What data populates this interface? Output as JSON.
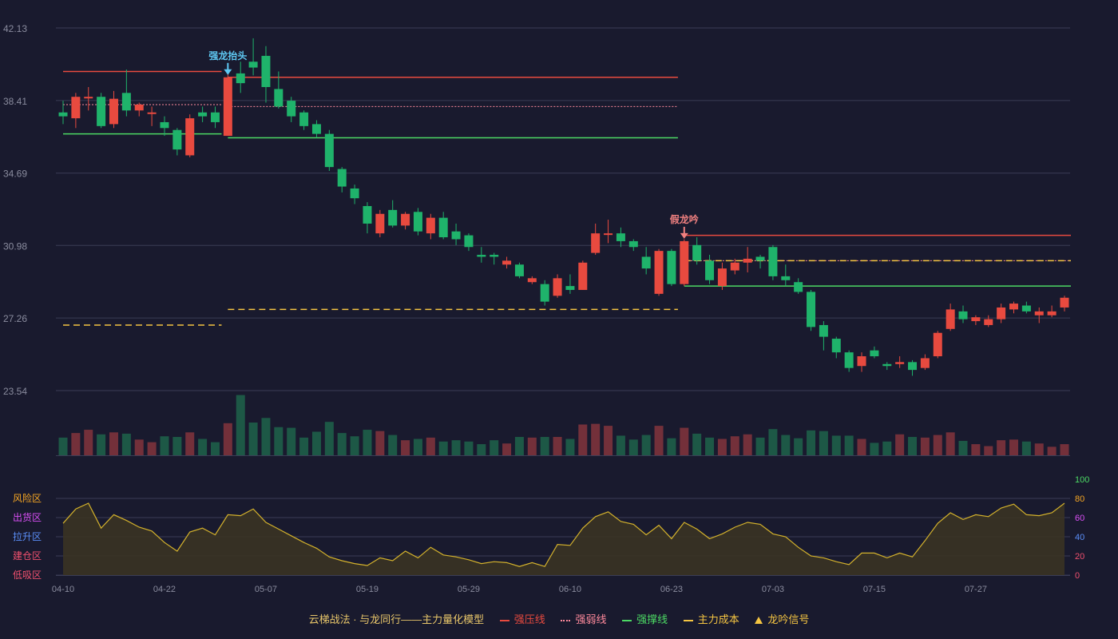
{
  "colors": {
    "background": "#191a2e",
    "up": "#e84a3f",
    "down": "#1fb36b",
    "vol_up": "#73303a",
    "vol_down": "#1d5846",
    "grid": "#3a3c55",
    "axis_text": "#8a8c9e",
    "pressure": "#e84a3f",
    "weak": "#ff8a9c",
    "support": "#4cd964",
    "cost": "#f5c542",
    "signal_blue": "#5ec8f2",
    "signal_red": "#f08080",
    "osc_line": "#d4b22c",
    "osc_fill": "#3a3323"
  },
  "legend": {
    "title": "云梯战法 · 与龙同行——主力量化模型",
    "items": [
      {
        "label": "强压线",
        "color": "#e84a3f",
        "style": "solid"
      },
      {
        "label": "强弱线",
        "color": "#ff8a9c",
        "style": "dotted"
      },
      {
        "label": "强撑线",
        "color": "#4cd964",
        "style": "solid"
      },
      {
        "label": "主力成本",
        "color": "#f5c542",
        "style": "dashed"
      },
      {
        "label": "龙吟信号",
        "color": "#f5c542",
        "style": "triangle"
      }
    ]
  },
  "chart_data": {
    "type": "candlestick",
    "price_axis": {
      "ticks": [
        "42.13",
        "38.41",
        "34.69",
        "30.98",
        "27.26",
        "23.54"
      ],
      "ylim": [
        23.54,
        42.13
      ]
    },
    "x_ticks": [
      {
        "index": 0,
        "label": "04-10"
      },
      {
        "index": 8,
        "label": "04-22"
      },
      {
        "index": 16,
        "label": "05-07"
      },
      {
        "index": 24,
        "label": "05-19"
      },
      {
        "index": 32,
        "label": "05-29"
      },
      {
        "index": 40,
        "label": "06-10"
      },
      {
        "index": 48,
        "label": "06-23"
      },
      {
        "index": 56,
        "label": "07-03"
      },
      {
        "index": 64,
        "label": "07-15"
      },
      {
        "index": 72,
        "label": "07-27"
      }
    ],
    "candles": [
      [
        37.8,
        37.6,
        38.4,
        37.2
      ],
      [
        37.5,
        38.6,
        38.8,
        37.0
      ],
      [
        38.6,
        38.6,
        39.1,
        37.9
      ],
      [
        38.6,
        37.1,
        38.8,
        37.0
      ],
      [
        37.2,
        38.5,
        38.9,
        37.0
      ],
      [
        38.8,
        37.9,
        40.0,
        37.6
      ],
      [
        37.9,
        38.2,
        38.3,
        37.6
      ],
      [
        37.8,
        37.8,
        38.1,
        37.1
      ],
      [
        37.3,
        37.0,
        37.6,
        36.6
      ],
      [
        36.9,
        35.9,
        37.0,
        35.6
      ],
      [
        35.6,
        37.5,
        37.7,
        35.5
      ],
      [
        37.8,
        37.6,
        38.1,
        37.3
      ],
      [
        37.8,
        37.3,
        38.1,
        37.0
      ],
      [
        36.6,
        39.6,
        39.8,
        36.6
      ],
      [
        39.8,
        39.3,
        40.4,
        38.8
      ],
      [
        40.4,
        40.1,
        41.6,
        39.7
      ],
      [
        40.7,
        39.1,
        41.2,
        38.3
      ],
      [
        39.0,
        38.1,
        39.9,
        38.0
      ],
      [
        38.4,
        37.6,
        38.6,
        37.3
      ],
      [
        37.8,
        37.1,
        37.9,
        36.9
      ],
      [
        37.2,
        36.7,
        37.4,
        36.5
      ],
      [
        36.7,
        35.0,
        36.9,
        34.8
      ],
      [
        34.9,
        34.0,
        35.0,
        33.7
      ],
      [
        33.9,
        33.4,
        34.1,
        33.1
      ],
      [
        33.0,
        32.1,
        33.2,
        31.6
      ],
      [
        31.6,
        32.6,
        32.8,
        31.4
      ],
      [
        32.8,
        32.0,
        33.3,
        31.9
      ],
      [
        32.0,
        32.6,
        32.7,
        31.8
      ],
      [
        32.7,
        31.7,
        32.9,
        31.5
      ],
      [
        31.6,
        32.4,
        32.6,
        31.3
      ],
      [
        32.4,
        31.4,
        32.7,
        31.3
      ],
      [
        31.7,
        31.3,
        32.1,
        31.0
      ],
      [
        31.5,
        30.9,
        31.6,
        30.7
      ],
      [
        30.5,
        30.4,
        30.9,
        30.1
      ],
      [
        30.5,
        30.4,
        30.6,
        30.0
      ],
      [
        30.0,
        30.2,
        30.4,
        29.8
      ],
      [
        30.0,
        29.4,
        30.1,
        29.3
      ],
      [
        29.1,
        29.3,
        29.4,
        29.0
      ],
      [
        29.0,
        28.1,
        29.2,
        27.9
      ],
      [
        28.4,
        29.3,
        29.5,
        28.3
      ],
      [
        28.9,
        28.7,
        29.5,
        28.5
      ],
      [
        28.7,
        30.1,
        30.2,
        28.7
      ],
      [
        30.6,
        31.6,
        32.1,
        30.5
      ],
      [
        31.6,
        31.6,
        32.3,
        31.1
      ],
      [
        31.6,
        31.2,
        31.9,
        30.9
      ],
      [
        31.2,
        30.9,
        31.3,
        30.7
      ],
      [
        30.4,
        29.8,
        30.9,
        29.5
      ],
      [
        28.5,
        30.7,
        30.8,
        28.4
      ],
      [
        30.7,
        29.0,
        30.8,
        28.9
      ],
      [
        29.0,
        31.2,
        31.3,
        28.9
      ],
      [
        31.0,
        30.2,
        31.4,
        30.0
      ],
      [
        30.2,
        29.2,
        30.5,
        29.0
      ],
      [
        28.9,
        29.8,
        30.1,
        28.7
      ],
      [
        29.7,
        30.1,
        30.3,
        29.5
      ],
      [
        30.1,
        30.3,
        30.9,
        29.6
      ],
      [
        30.4,
        30.2,
        30.5,
        29.8
      ],
      [
        30.9,
        29.4,
        31.0,
        29.2
      ],
      [
        29.4,
        29.2,
        30.0,
        28.9
      ],
      [
        29.1,
        28.6,
        29.3,
        28.5
      ],
      [
        28.6,
        26.8,
        28.7,
        26.6
      ],
      [
        26.9,
        26.3,
        27.1,
        25.6
      ],
      [
        26.2,
        25.5,
        26.3,
        25.2
      ],
      [
        25.5,
        24.7,
        25.6,
        24.5
      ],
      [
        24.8,
        25.3,
        25.5,
        24.5
      ],
      [
        25.6,
        25.3,
        25.8,
        25.2
      ],
      [
        24.9,
        24.8,
        25.0,
        24.6
      ],
      [
        24.9,
        25.0,
        25.3,
        24.7
      ],
      [
        25.0,
        24.6,
        25.1,
        24.3
      ],
      [
        24.7,
        25.2,
        25.4,
        24.6
      ],
      [
        25.3,
        26.5,
        26.6,
        25.2
      ],
      [
        26.7,
        27.7,
        28.0,
        26.6
      ],
      [
        27.6,
        27.2,
        27.9,
        27.0
      ],
      [
        27.1,
        27.3,
        27.4,
        26.9
      ],
      [
        26.9,
        27.2,
        27.4,
        26.8
      ],
      [
        27.2,
        27.8,
        28.0,
        27.0
      ],
      [
        27.7,
        28.0,
        28.1,
        27.5
      ],
      [
        27.9,
        27.6,
        28.1,
        27.5
      ],
      [
        27.4,
        27.6,
        27.8,
        27.0
      ],
      [
        27.4,
        27.6,
        27.9,
        27.3
      ],
      [
        27.8,
        28.3,
        28.4,
        27.6
      ]
    ],
    "volume": [
      0.27,
      0.34,
      0.39,
      0.32,
      0.35,
      0.33,
      0.24,
      0.2,
      0.29,
      0.28,
      0.35,
      0.25,
      0.2,
      0.49,
      0.92,
      0.5,
      0.57,
      0.43,
      0.42,
      0.27,
      0.36,
      0.51,
      0.34,
      0.29,
      0.39,
      0.37,
      0.31,
      0.23,
      0.25,
      0.27,
      0.21,
      0.23,
      0.21,
      0.17,
      0.23,
      0.18,
      0.28,
      0.27,
      0.28,
      0.28,
      0.25,
      0.47,
      0.48,
      0.45,
      0.3,
      0.24,
      0.31,
      0.45,
      0.26,
      0.42,
      0.33,
      0.27,
      0.25,
      0.29,
      0.32,
      0.27,
      0.4,
      0.31,
      0.26,
      0.38,
      0.37,
      0.3,
      0.3,
      0.25,
      0.19,
      0.21,
      0.32,
      0.28,
      0.27,
      0.31,
      0.35,
      0.22,
      0.17,
      0.14,
      0.23,
      0.24,
      0.21,
      0.18,
      0.13,
      0.17
    ],
    "oscillator": {
      "zones": [
        {
          "label": "风险区",
          "color": "#f5a623"
        },
        {
          "label": "出货区",
          "color": "#d94ff5"
        },
        {
          "label": "拉升区",
          "color": "#5b8ff9"
        },
        {
          "label": "建仓区",
          "color": "#f0506e"
        },
        {
          "label": "低吸区",
          "color": "#f0506e"
        }
      ],
      "right_ticks": [
        {
          "value": 100,
          "color": "#4cd964"
        },
        {
          "value": 80,
          "color": "#f5a623"
        },
        {
          "value": 60,
          "color": "#d94ff5"
        },
        {
          "value": 40,
          "color": "#5b8ff9"
        },
        {
          "value": 20,
          "color": "#f0506e"
        },
        {
          "value": 0,
          "color": "#f0506e"
        }
      ],
      "ylim": [
        0,
        100
      ],
      "values": [
        54,
        69,
        75,
        49,
        63,
        57,
        50,
        46,
        34,
        25,
        45,
        49,
        42,
        63,
        62,
        69,
        55,
        48,
        41,
        34,
        28,
        19,
        15,
        12,
        10,
        18,
        15,
        25,
        18,
        29,
        21,
        19,
        16,
        12,
        14,
        13,
        9,
        13,
        9,
        32,
        31,
        49,
        61,
        66,
        56,
        53,
        42,
        52,
        38,
        55,
        48,
        38,
        43,
        50,
        55,
        53,
        43,
        40,
        29,
        20,
        18,
        14,
        11,
        23,
        23,
        18,
        23,
        19,
        36,
        54,
        65,
        58,
        63,
        61,
        70,
        74,
        63,
        62,
        65,
        75
      ]
    },
    "segments": [
      {
        "type": "pressure",
        "from": 0,
        "to": 12,
        "value": 39.9
      },
      {
        "type": "weak",
        "from": 0,
        "to": 12,
        "value": 38.2
      },
      {
        "type": "support",
        "from": 0,
        "to": 12,
        "value": 36.7
      },
      {
        "type": "cost",
        "from": 0,
        "to": 12,
        "value": 26.9
      },
      {
        "type": "pressure",
        "from": 13,
        "to": 48,
        "value": 39.6
      },
      {
        "type": "weak",
        "from": 13,
        "to": 48,
        "value": 38.1
      },
      {
        "type": "support",
        "from": 13,
        "to": 48,
        "value": 36.5
      },
      {
        "type": "cost",
        "from": 13,
        "to": 48,
        "value": 27.7
      },
      {
        "type": "pressure",
        "from": 49,
        "to": 79,
        "value": 31.5
      },
      {
        "type": "weak",
        "from": 49,
        "to": 79,
        "value": 30.2
      },
      {
        "type": "support",
        "from": 49,
        "to": 79,
        "value": 28.9
      },
      {
        "type": "cost",
        "from": 49,
        "to": 79,
        "value": 30.2
      }
    ],
    "signals": [
      {
        "index": 13,
        "label": "强龙抬头",
        "value": 39.6,
        "tone": "blue"
      },
      {
        "index": 49,
        "label": "假龙吟",
        "value": 31.2,
        "tone": "red"
      }
    ]
  }
}
